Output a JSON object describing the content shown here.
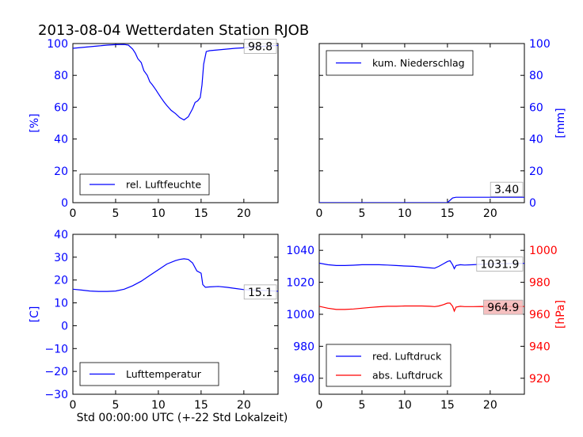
{
  "title": "2013-08-04 Wetterdaten Station RJOB",
  "xlabel": "Std 00:00:00 UTC (+-22 Std Lokalzeit)",
  "colors": {
    "blue": "#0000ff",
    "red": "#ff0000",
    "latest_box_red": "#f5b5b5"
  },
  "chart_data": [
    {
      "type": "line",
      "name": "humidity-chart",
      "ylabel": "[%]",
      "xlim": [
        0,
        24
      ],
      "ylim": [
        0,
        100
      ],
      "xticks": [
        0,
        5,
        10,
        15,
        20
      ],
      "yticks": [
        0,
        20,
        40,
        60,
        80,
        100
      ],
      "yaxis_side": "left",
      "legend_position": "bottom-left",
      "latest_value": "98.8",
      "series": [
        {
          "name": "rel. Luftfeuchte",
          "color": "#0000ff",
          "x": [
            0,
            1,
            2,
            3,
            4,
            5,
            6,
            6.5,
            7,
            7.3,
            7.6,
            8,
            8.3,
            8.7,
            9,
            9.3,
            9.7,
            10,
            10.3,
            10.7,
            11,
            11.5,
            12,
            12.5,
            13,
            13.5,
            14,
            14.3,
            14.6,
            14.9,
            15.1,
            15.3,
            15.6,
            16,
            17,
            18,
            19,
            20,
            21,
            22,
            23,
            24
          ],
          "y": [
            97,
            97.5,
            98,
            98.5,
            99,
            99.3,
            99.4,
            99,
            96.5,
            94,
            90.5,
            88,
            83,
            80,
            76,
            74,
            71,
            68.5,
            66,
            63,
            61,
            58,
            56,
            53.5,
            52,
            54,
            59,
            63,
            64,
            66,
            74,
            87,
            95,
            95.5,
            96,
            96.5,
            97,
            97.3,
            97.8,
            98.2,
            98.5,
            98.8
          ]
        }
      ]
    },
    {
      "type": "line",
      "name": "precipitation-chart",
      "ylabel": "[mm]",
      "xlim": [
        0,
        24
      ],
      "ylim": [
        0,
        100
      ],
      "xticks": [
        0,
        5,
        10,
        15,
        20
      ],
      "yticks": [
        0,
        20,
        40,
        60,
        80,
        100
      ],
      "yaxis_side": "right",
      "legend_position": "top-left",
      "latest_value": "3.40",
      "series": [
        {
          "name": "kum. Niederschlag",
          "color": "#0000ff",
          "x": [
            0,
            15,
            15.3,
            15.6,
            16,
            24
          ],
          "y": [
            0,
            0,
            1.5,
            3,
            3.4,
            3.4
          ]
        }
      ]
    },
    {
      "type": "line",
      "name": "temperature-chart",
      "ylabel": "[C]",
      "xlim": [
        0,
        24
      ],
      "ylim": [
        -30,
        40
      ],
      "xticks": [
        0,
        5,
        10,
        15,
        20
      ],
      "yticks": [
        -30,
        -20,
        -10,
        0,
        10,
        20,
        30,
        40
      ],
      "yaxis_side": "left",
      "legend_position": "bottom-left",
      "latest_value": "15.1",
      "series": [
        {
          "name": "Lufttemperatur",
          "color": "#0000ff",
          "x": [
            0,
            1,
            2,
            3,
            4,
            5,
            6,
            7,
            8,
            9,
            10,
            11,
            12,
            12.5,
            13,
            13.5,
            14,
            14.5,
            15,
            15.2,
            15.5,
            16,
            17,
            18,
            19,
            20,
            21,
            22,
            23,
            24
          ],
          "y": [
            16,
            15.6,
            15.2,
            15,
            15,
            15.2,
            16,
            17.5,
            19.5,
            22,
            24.5,
            27,
            28.5,
            29,
            29.3,
            29,
            27.5,
            24,
            23,
            18,
            16.8,
            17,
            17.2,
            16.8,
            16.3,
            15.8,
            15.6,
            15.5,
            15.3,
            15.1
          ]
        }
      ]
    },
    {
      "type": "line",
      "name": "pressure-chart",
      "ylabel": "[hPa]",
      "xlim": [
        0,
        24
      ],
      "ylim": [
        950,
        1050
      ],
      "xticks": [
        0,
        5,
        10,
        15,
        20
      ],
      "yticks": [
        960,
        980,
        1000,
        1020,
        1040
      ],
      "y2lim": [
        910,
        1010
      ],
      "y2ticks": [
        920,
        940,
        960,
        980,
        1000
      ],
      "yaxis_side": "both",
      "legend_position": "bottom-left",
      "latest_values": [
        "1031.9",
        "964.9"
      ],
      "series": [
        {
          "name": "red. Luftdruck",
          "color": "#0000ff",
          "axis": "left",
          "x": [
            0,
            1,
            2,
            3,
            4,
            5,
            6,
            7,
            8,
            9,
            10,
            11,
            12,
            13,
            13.5,
            14,
            14.5,
            15,
            15.3,
            15.6,
            15.8,
            16,
            16.5,
            17,
            18,
            19,
            20,
            21,
            22,
            23,
            24
          ],
          "y": [
            1032,
            1031,
            1030.5,
            1030.5,
            1030.7,
            1031,
            1031,
            1031,
            1030.8,
            1030.5,
            1030.2,
            1030,
            1029.5,
            1029,
            1028.8,
            1030,
            1031.5,
            1033,
            1033.5,
            1031,
            1028.5,
            1030.5,
            1031,
            1030.8,
            1031,
            1031.3,
            1031.5,
            1031.6,
            1031.7,
            1031.8,
            1031.9
          ]
        },
        {
          "name": "abs. Luftdruck",
          "color": "#ff0000",
          "axis": "right",
          "x": [
            0,
            1,
            2,
            3,
            4,
            5,
            6,
            7,
            8,
            9,
            10,
            11,
            12,
            13,
            13.5,
            14,
            14.5,
            15,
            15.3,
            15.6,
            15.8,
            16,
            16.5,
            17,
            18,
            19,
            20,
            21,
            22,
            23,
            24
          ],
          "y": [
            965,
            963.8,
            963,
            963,
            963.3,
            963.8,
            964.3,
            964.7,
            965,
            965,
            965.2,
            965.2,
            965.2,
            965,
            964.8,
            965.2,
            966,
            967,
            967,
            965,
            962,
            964.5,
            965,
            964.8,
            964.8,
            964.9,
            964.8,
            964.9,
            964.9,
            964.9,
            964.9
          ]
        }
      ]
    }
  ]
}
